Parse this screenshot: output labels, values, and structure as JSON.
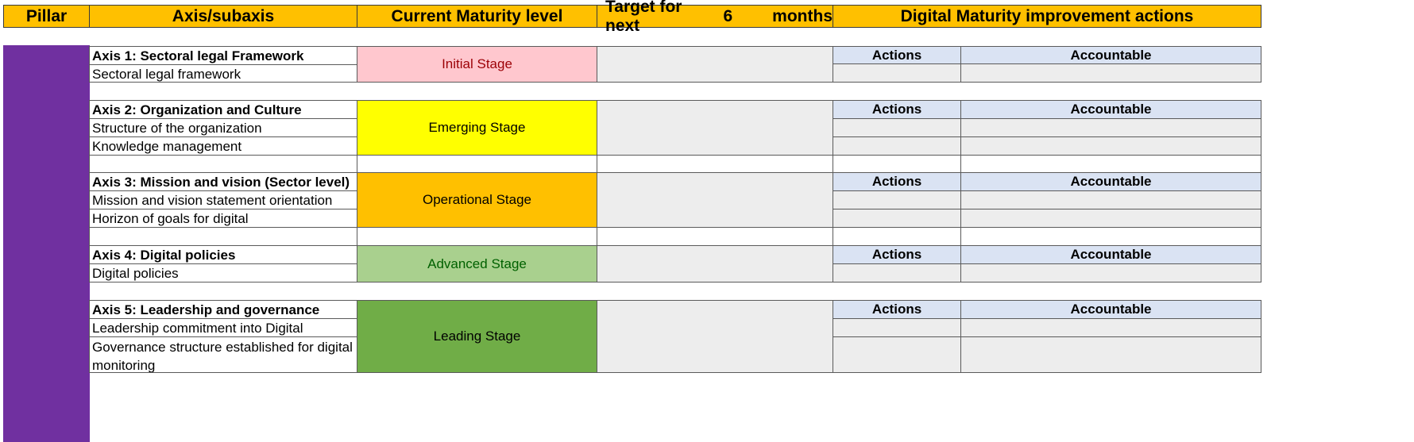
{
  "header": {
    "pillar": "Pillar",
    "axis": "Axis/subaxis",
    "current": "Current Maturity level",
    "target_prefix": "Target for next",
    "target_value": "6",
    "target_suffix": "months",
    "improvement": "Digital Maturity improvement actions"
  },
  "axes": [
    {
      "title": "Axis 1: Sectoral legal Framework",
      "sub": [
        "Sectoral legal framework"
      ],
      "stage": "Initial Stage",
      "stage_bg": "#ffc7ce",
      "stage_fg": "#9c0006"
    },
    {
      "title": "Axis 2: Organization and Culture",
      "sub": [
        "Structure of the organization",
        "Knowledge management"
      ],
      "stage": "Emerging Stage",
      "stage_bg": "#ffff00",
      "stage_fg": "#000000"
    },
    {
      "title": "Axis 3: Mission and vision (Sector level)",
      "sub": [
        "Mission and vision statement orientation",
        "Horizon of goals for digital"
      ],
      "stage": "Operational Stage",
      "stage_bg": "#ffc000",
      "stage_fg": "#000000"
    },
    {
      "title": "Axis 4: Digital policies",
      "sub": [
        "Digital policies"
      ],
      "stage": "Advanced Stage",
      "stage_bg": "#a9d08e",
      "stage_fg": "#006100"
    },
    {
      "title": "Axis 5: Leadership and governance",
      "sub": [
        "Leadership commitment into Digital",
        "Governance structure established for digital monitoring"
      ],
      "stage": "Leading Stage",
      "stage_bg": "#70ad47",
      "stage_fg": "#000000"
    }
  ],
  "actions_label": "Actions",
  "accountable_label": "Accountable"
}
